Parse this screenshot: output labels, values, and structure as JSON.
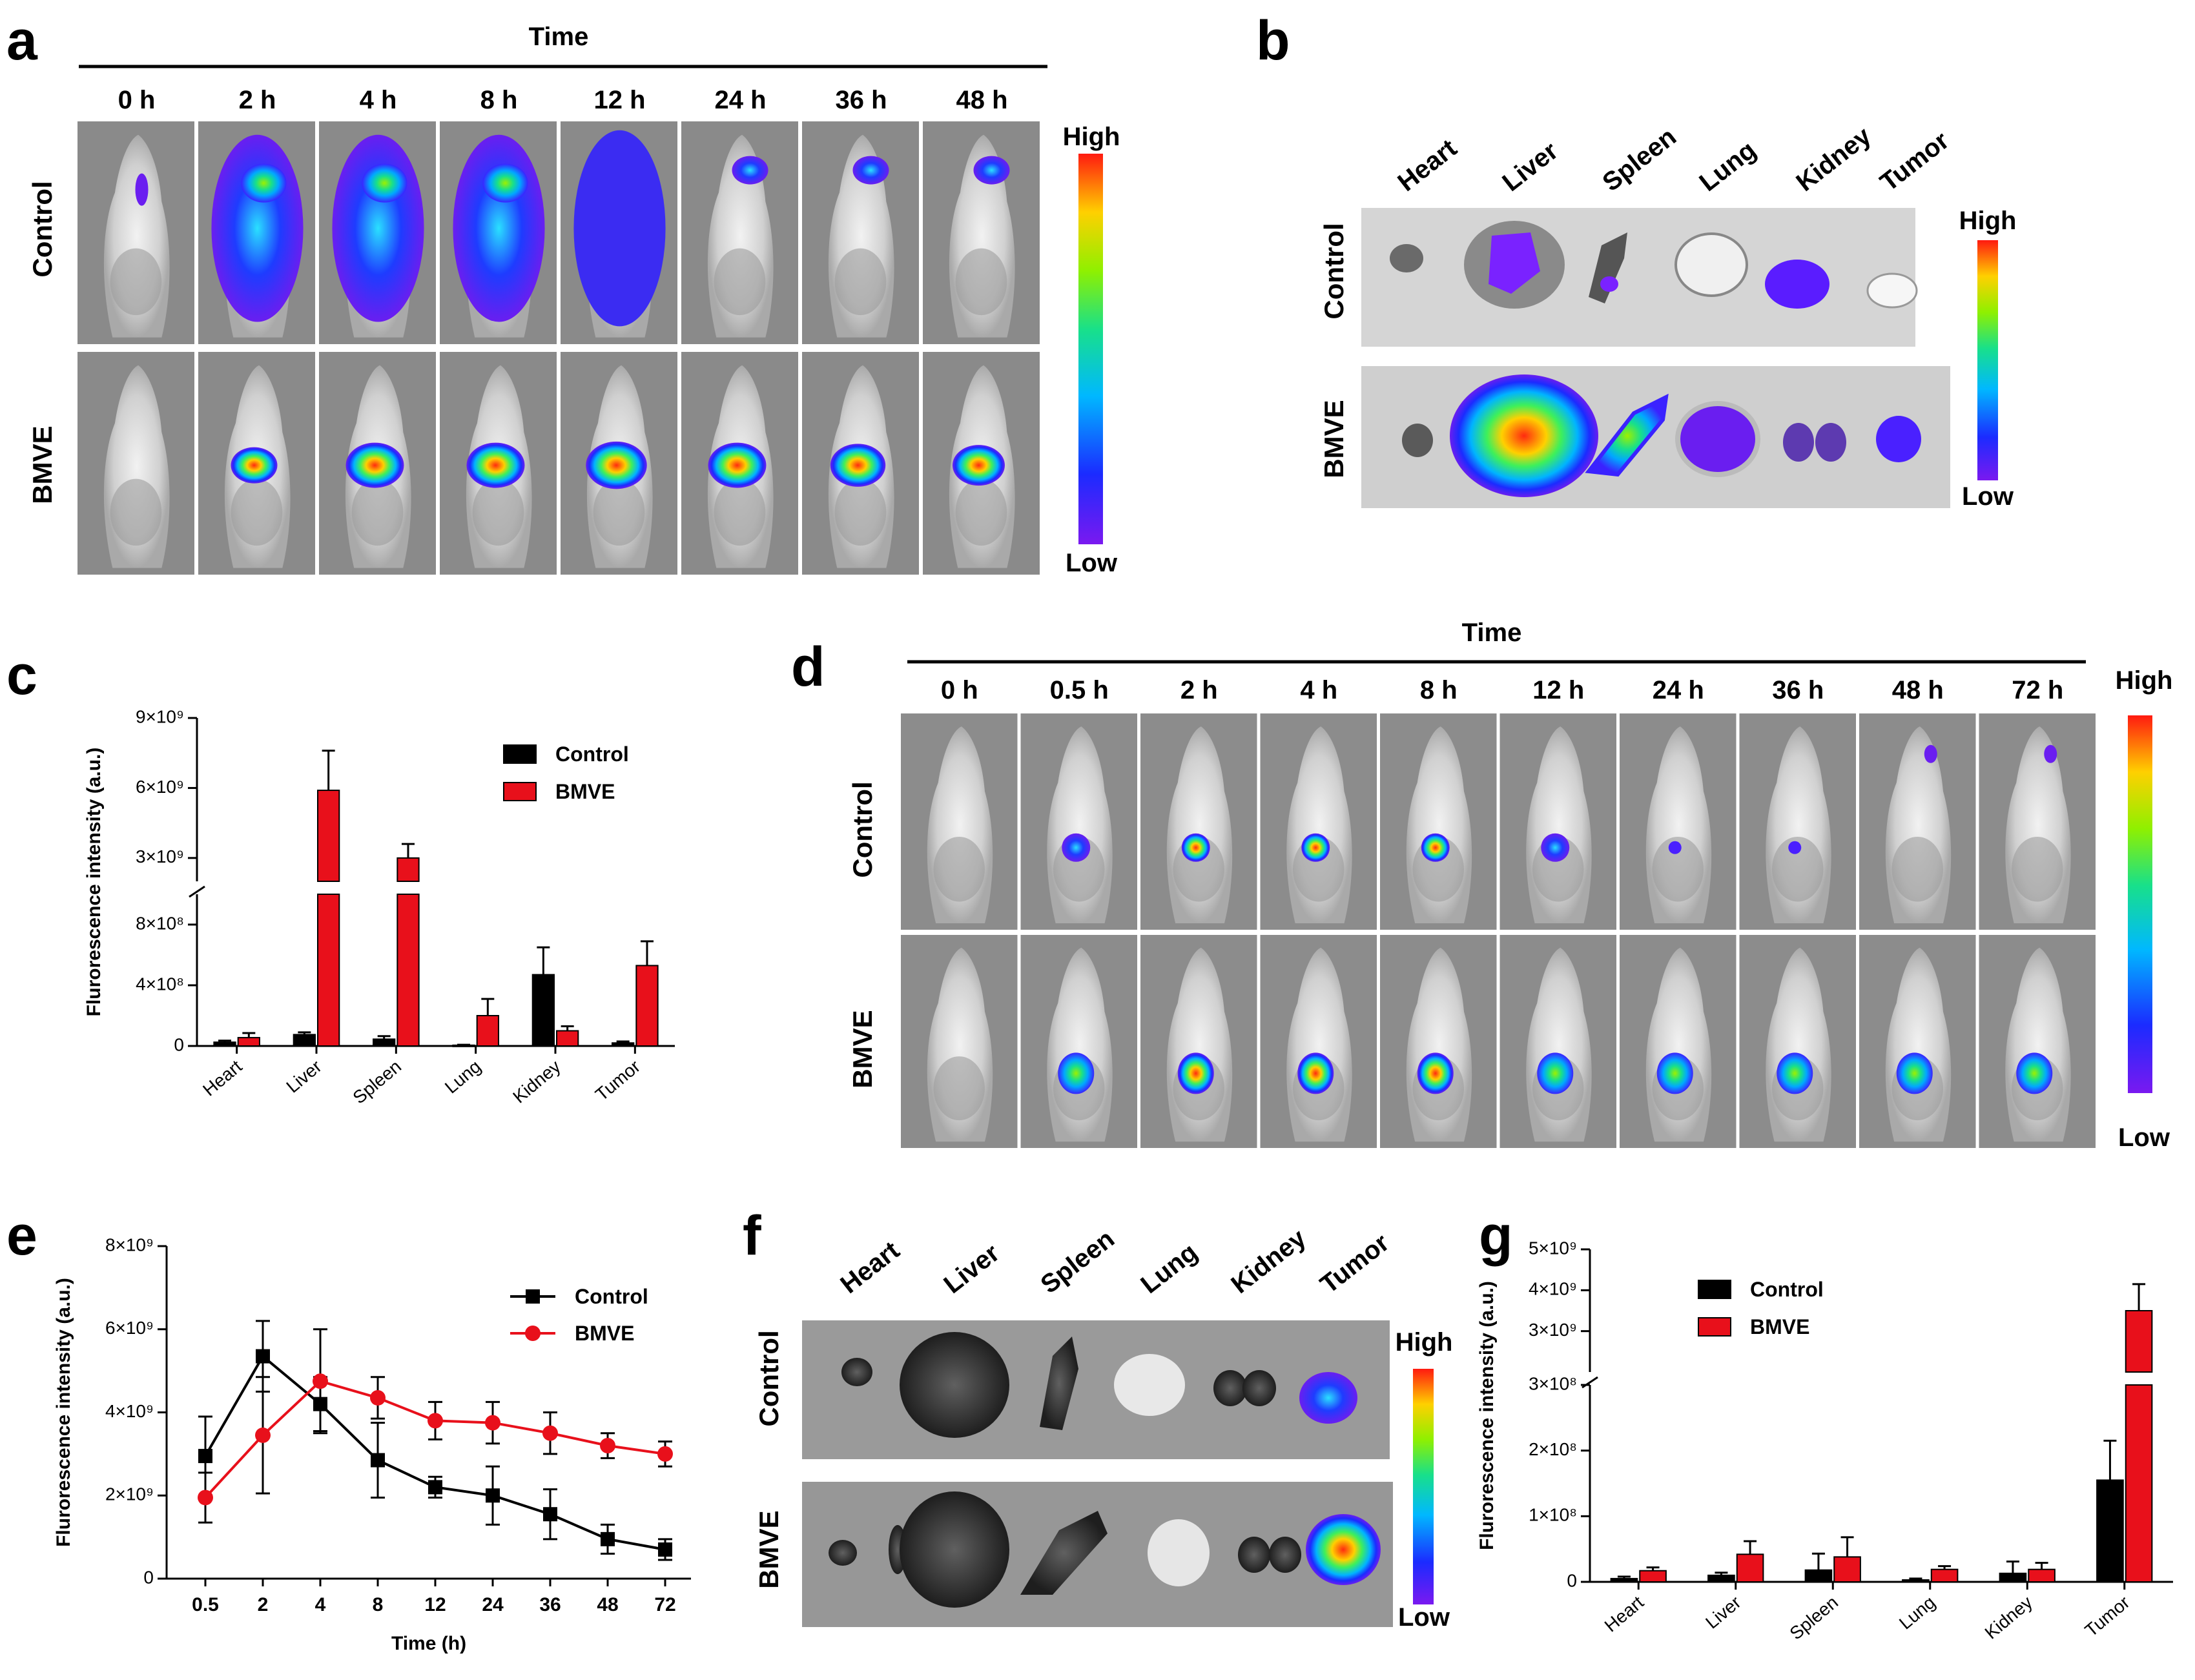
{
  "panels": {
    "a": "a",
    "b": "b",
    "c": "c",
    "d": "d",
    "e": "e",
    "f": "f",
    "g": "g"
  },
  "groups": [
    "Control",
    "BMVE"
  ],
  "scale": {
    "high": "High",
    "low": "Low"
  },
  "time_label": "Time",
  "panel_a": {
    "times": [
      "0 h",
      "2 h",
      "4 h",
      "8 h",
      "12 h",
      "24 h",
      "36 h",
      "48 h"
    ]
  },
  "panel_d": {
    "times": [
      "0 h",
      "0.5 h",
      "2 h",
      "4 h",
      "8 h",
      "12 h",
      "24 h",
      "36 h",
      "48 h",
      "72 h"
    ]
  },
  "panel_b": {
    "organs": [
      "Heart",
      "Liver",
      "Spleen",
      "Lung",
      "Kidney",
      "Tumor"
    ]
  },
  "panel_f": {
    "organs": [
      "Heart",
      "Liver",
      "Spleen",
      "Lung",
      "Kidney",
      "Tumor"
    ]
  },
  "colors": {
    "control": "#000000",
    "bmve": "#e8101b",
    "photo_bg": "#8f8f8f"
  },
  "chart_data": [
    {
      "id": "c",
      "type": "bar",
      "ylabel": "Flurorescence intensity (a.u.)",
      "categories": [
        "Heart",
        "Liver",
        "Spleen",
        "Lung",
        "Kidney",
        "Tumor"
      ],
      "series": [
        {
          "name": "Control",
          "values": [
            25000000.0,
            75000000.0,
            45000000.0,
            5000000.0,
            470000000.0,
            20000000.0
          ],
          "errors": [
            10000000.0,
            15000000.0,
            20000000.0,
            3000000.0,
            180000000.0,
            10000000.0
          ]
        },
        {
          "name": "BMVE",
          "values": [
            55000000.0,
            5900000000.0,
            3000000000.0,
            200000000.0,
            100000000.0,
            530000000.0
          ],
          "errors": [
            30000000.0,
            1700000000.0,
            600000000.0,
            110000000.0,
            30000000.0,
            160000000.0
          ]
        }
      ],
      "ylim": [
        0,
        9000000000.0
      ],
      "axis_break": [
        1000000000.0,
        2000000000.0
      ],
      "yticks": [
        "0",
        "4×10⁸",
        "8×10⁸",
        "3×10⁹",
        "6×10⁹",
        "9×10⁹"
      ]
    },
    {
      "id": "e",
      "type": "line",
      "xlabel": "Time (h)",
      "ylabel": "Flurorescence intensity (a.u.)",
      "x": [
        "0.5",
        "2",
        "4",
        "8",
        "12",
        "24",
        "36",
        "48",
        "72"
      ],
      "series": [
        {
          "name": "Control",
          "values": [
            2950000000.0,
            5350000000.0,
            4200000000.0,
            2850000000.0,
            2200000000.0,
            2000000000.0,
            1550000000.0,
            950000000.0,
            700000000.0
          ],
          "errors": [
            950000000.0,
            850000000.0,
            650000000.0,
            900000000.0,
            250000000.0,
            700000000.0,
            600000000.0,
            350000000.0,
            250000000.0
          ]
        },
        {
          "name": "BMVE",
          "values": [
            1950000000.0,
            3450000000.0,
            4750000000.0,
            4350000000.0,
            3800000000.0,
            3750000000.0,
            3500000000.0,
            3200000000.0,
            3000000000.0
          ],
          "errors": [
            600000000.0,
            1400000000.0,
            1250000000.0,
            500000000.0,
            450000000.0,
            500000000.0,
            500000000.0,
            300000000.0,
            300000000.0
          ]
        }
      ],
      "ylim": [
        0,
        8000000000.0
      ],
      "yticks": [
        "0",
        "2×10⁹",
        "4×10⁹",
        "6×10⁹",
        "8×10⁹"
      ]
    },
    {
      "id": "g",
      "type": "bar",
      "ylabel": "Flurorescence intensity (a.u.)",
      "categories": [
        "Heart",
        "Liver",
        "Spleen",
        "Lung",
        "Kidney",
        "Tumor"
      ],
      "series": [
        {
          "name": "Control",
          "values": [
            5000000.0,
            10000000.0,
            18000000.0,
            3000000.0,
            13000000.0,
            155000000.0
          ],
          "errors": [
            3000000.0,
            4000000.0,
            25000000.0,
            2000000.0,
            18000000.0,
            60000000.0
          ]
        },
        {
          "name": "BMVE",
          "values": [
            17000000.0,
            42000000.0,
            38000000.0,
            19000000.0,
            19000000.0,
            3500000000.0
          ],
          "errors": [
            5000000.0,
            20000000.0,
            30000000.0,
            5000000.0,
            10000000.0,
            650000000.0
          ]
        }
      ],
      "ylim": [
        0,
        5000000000.0
      ],
      "axis_break": [
        300000000.0,
        2000000000.0
      ],
      "yticks": [
        "0",
        "1×10⁸",
        "2×10⁸",
        "3×10⁸",
        "3×10⁹",
        "4×10⁹",
        "5×10⁹"
      ]
    }
  ]
}
